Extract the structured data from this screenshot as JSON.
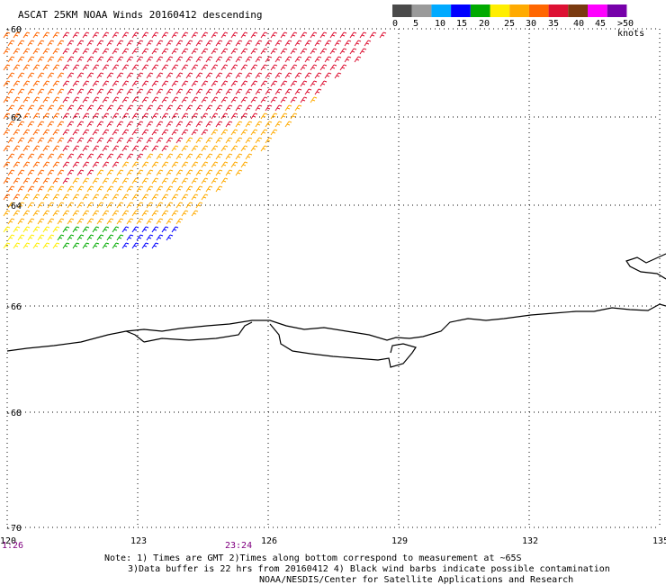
{
  "title": "ASCAT 25KM NOAA Winds 20160412 descending",
  "colorbar": {
    "colors": [
      "#4a4a4a",
      "#9a9a9a",
      "#00aaff",
      "#0000ff",
      "#00aa00",
      "#ffee00",
      "#ffaa00",
      "#ff6600",
      "#dd1133",
      "#7a3a10",
      "#ff00ff",
      "#7700aa"
    ],
    "labels": [
      "0",
      "5",
      "10",
      "15",
      "20",
      "25",
      "30",
      "35",
      "40",
      "45",
      ">50 knots"
    ]
  },
  "axes": {
    "lon_ticks": [
      "120",
      "123",
      "126",
      "129",
      "132",
      "135"
    ],
    "lat_ticks": [
      "-60",
      "-62",
      "-64",
      "-66",
      "-68",
      "-70"
    ]
  },
  "times": [
    "1:26",
    "23:24"
  ],
  "notes": [
    "Note: 1) Times are GMT 2)Times along bottom correspond to measurement at ~65S",
    "3)Data buffer is 22 hrs from 20160412 4) Black wind barbs indicate possible contamination",
    "NOAA/NESDIS/Center for Satellite Applications and Research"
  ]
}
